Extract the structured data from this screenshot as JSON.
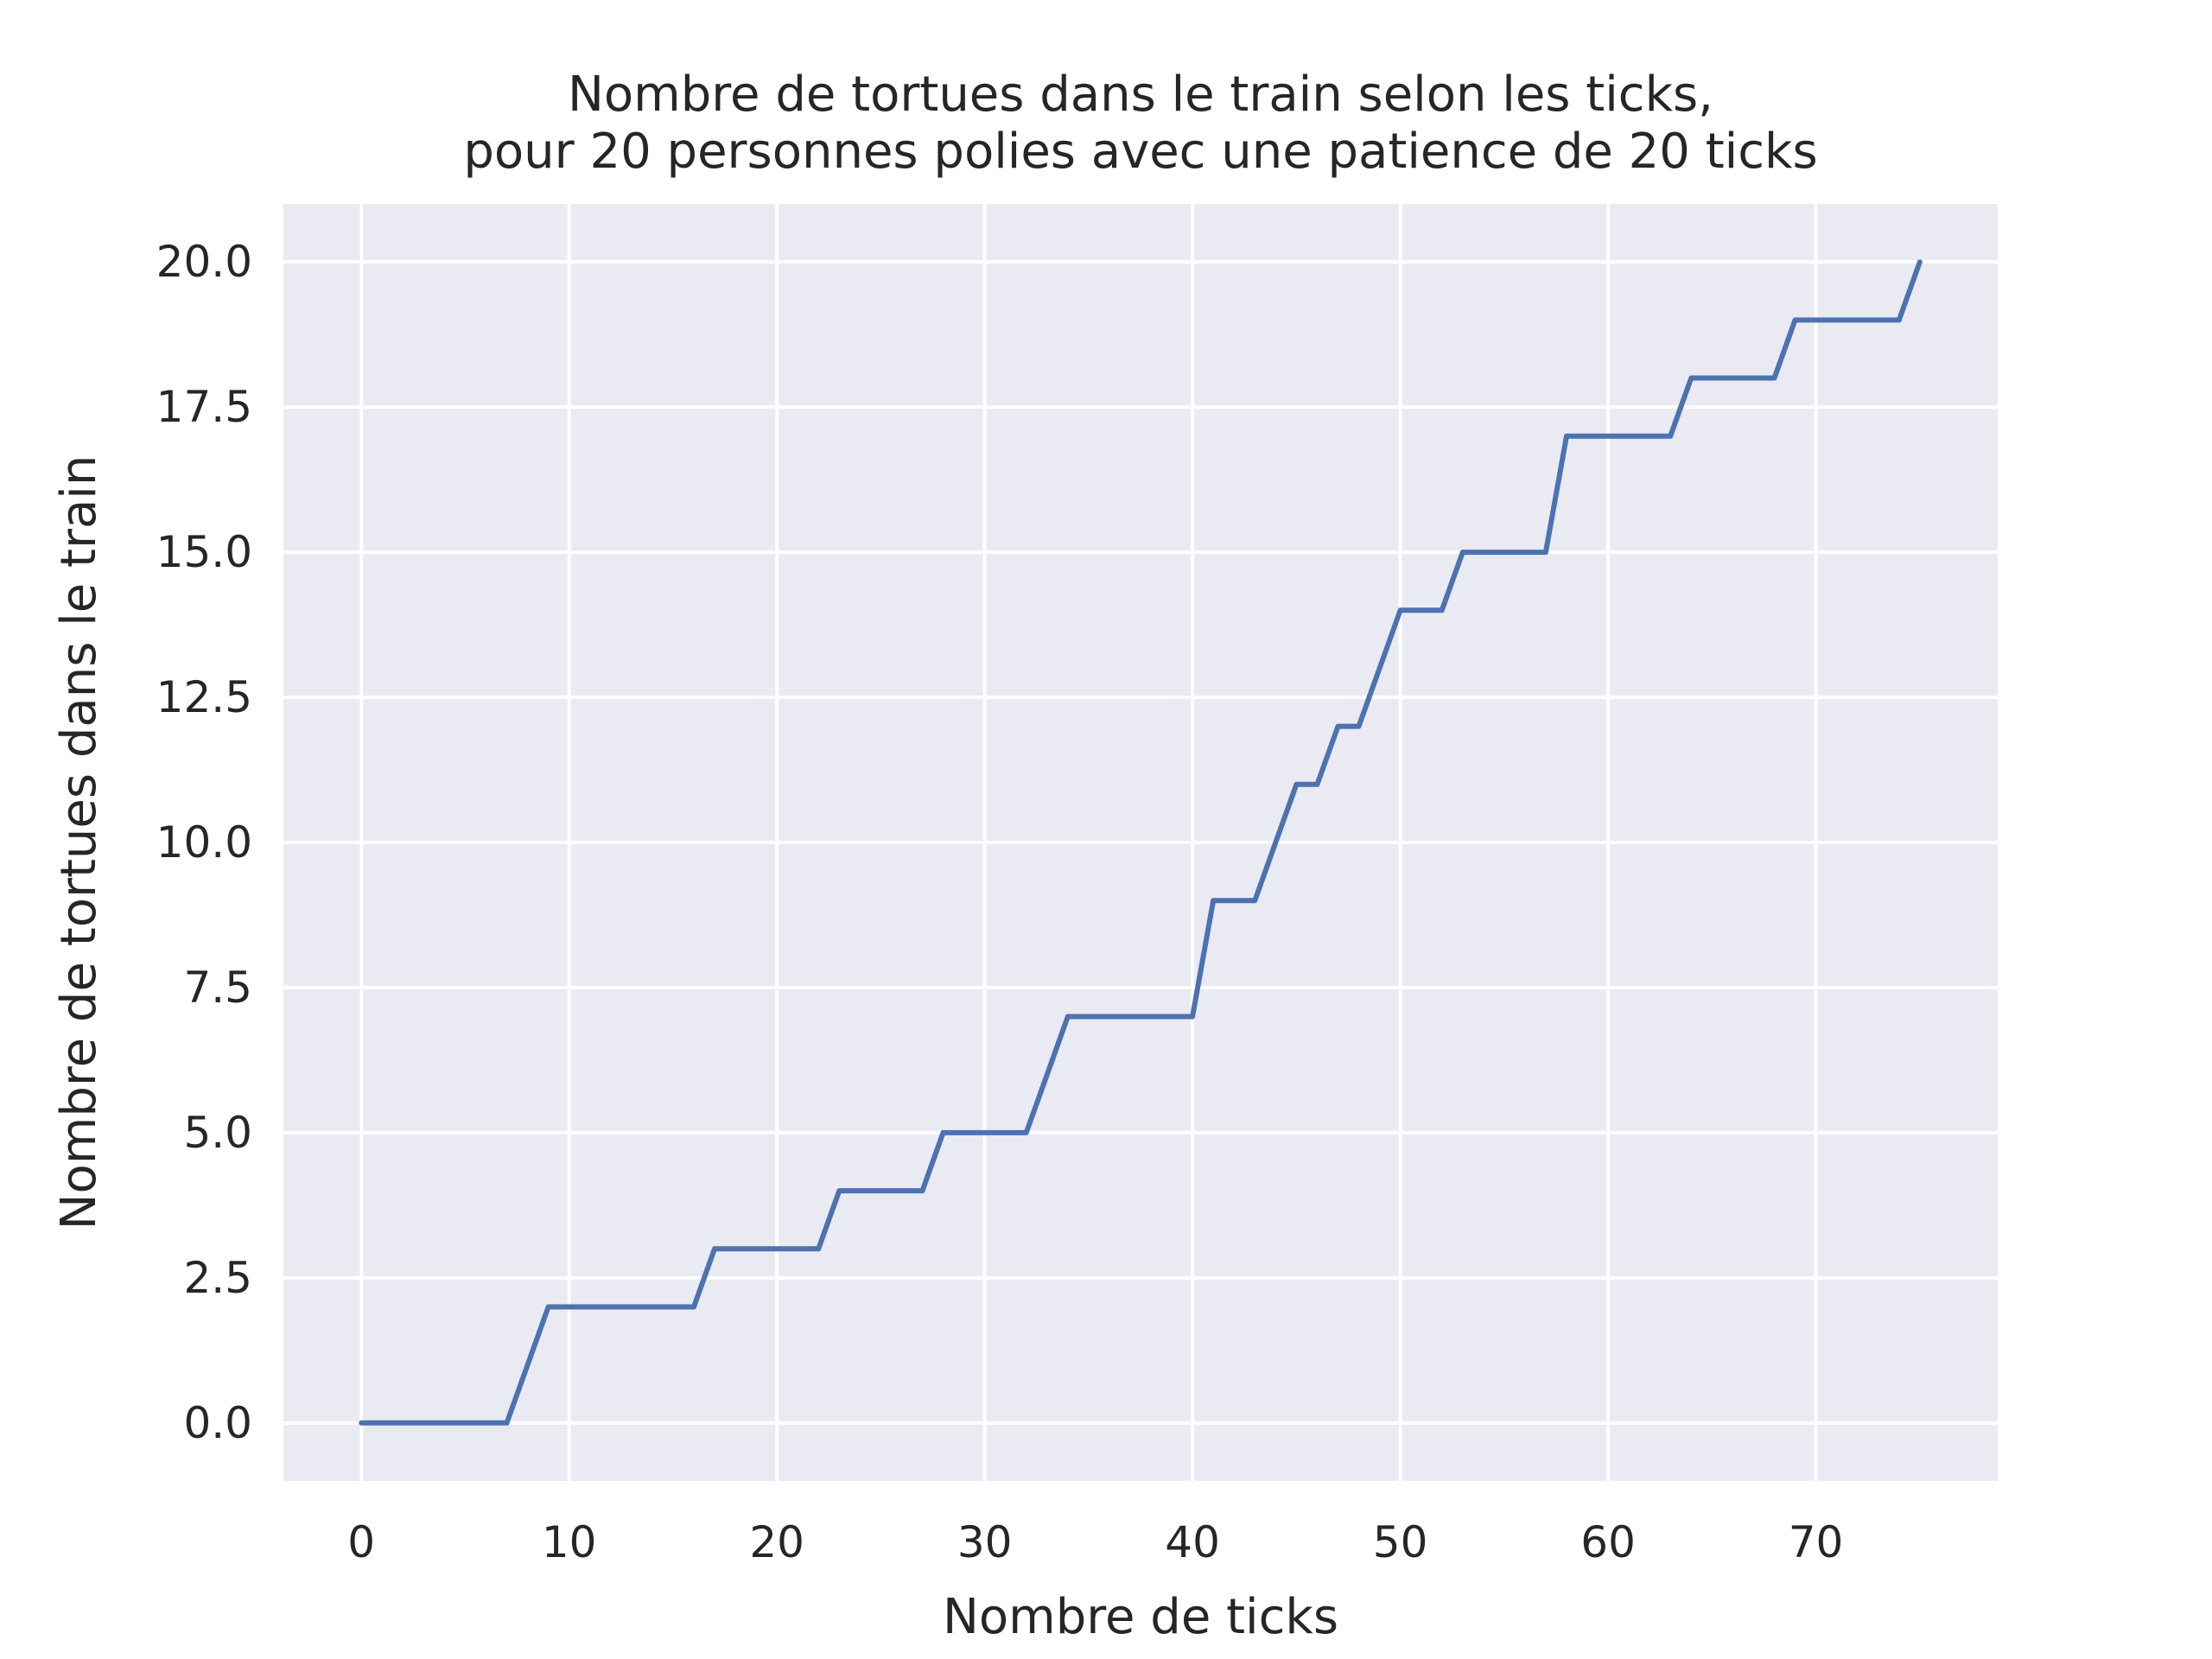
{
  "chart_data": {
    "type": "line",
    "title_lines": [
      "Nombre de tortues dans le train selon les ticks,",
      "pour 20 personnes polies avec une patience de 20 ticks"
    ],
    "xlabel": "Nombre de ticks",
    "ylabel": "Nombre de tortues dans le train",
    "xlim": [
      -3.75,
      78.75
    ],
    "ylim": [
      -1,
      21
    ],
    "x_ticks": [
      0,
      10,
      20,
      30,
      40,
      50,
      60,
      70
    ],
    "x_tick_labels": [
      "0",
      "10",
      "20",
      "30",
      "40",
      "50",
      "60",
      "70"
    ],
    "y_ticks": [
      0,
      2.5,
      5,
      7.5,
      10,
      12.5,
      15,
      17.5,
      20
    ],
    "y_tick_labels": [
      "0.0",
      "2.5",
      "5.0",
      "7.5",
      "10.0",
      "12.5",
      "15.0",
      "17.5",
      "20.0"
    ],
    "grid": true,
    "background_color": "#eaeaf2",
    "series": [
      {
        "color": "#4c72b0",
        "x": [
          0,
          1,
          2,
          3,
          4,
          5,
          6,
          7,
          8,
          9,
          10,
          11,
          12,
          13,
          14,
          15,
          16,
          17,
          18,
          19,
          20,
          21,
          22,
          23,
          24,
          25,
          26,
          27,
          28,
          29,
          30,
          31,
          32,
          33,
          34,
          35,
          36,
          37,
          38,
          39,
          40,
          41,
          42,
          43,
          44,
          45,
          46,
          47,
          48,
          49,
          50,
          51,
          52,
          53,
          54,
          55,
          56,
          57,
          58,
          59,
          60,
          61,
          62,
          63,
          64,
          65,
          66,
          67,
          68,
          69,
          70,
          71,
          72,
          73,
          74,
          75
        ],
        "y": [
          0,
          0,
          0,
          0,
          0,
          0,
          0,
          0,
          1,
          2,
          2,
          2,
          2,
          2,
          2,
          2,
          2,
          3,
          3,
          3,
          3,
          3,
          3,
          4,
          4,
          4,
          4,
          4,
          5,
          5,
          5,
          5,
          5,
          6,
          7,
          7,
          7,
          7,
          7,
          7,
          7,
          9,
          9,
          9,
          10,
          11,
          11,
          12,
          12,
          13,
          14,
          14,
          14,
          15,
          15,
          15,
          15,
          15,
          17,
          17,
          17,
          17,
          17,
          17,
          18,
          18,
          18,
          18,
          18,
          19,
          19,
          19,
          19,
          19,
          19,
          20
        ]
      }
    ]
  }
}
